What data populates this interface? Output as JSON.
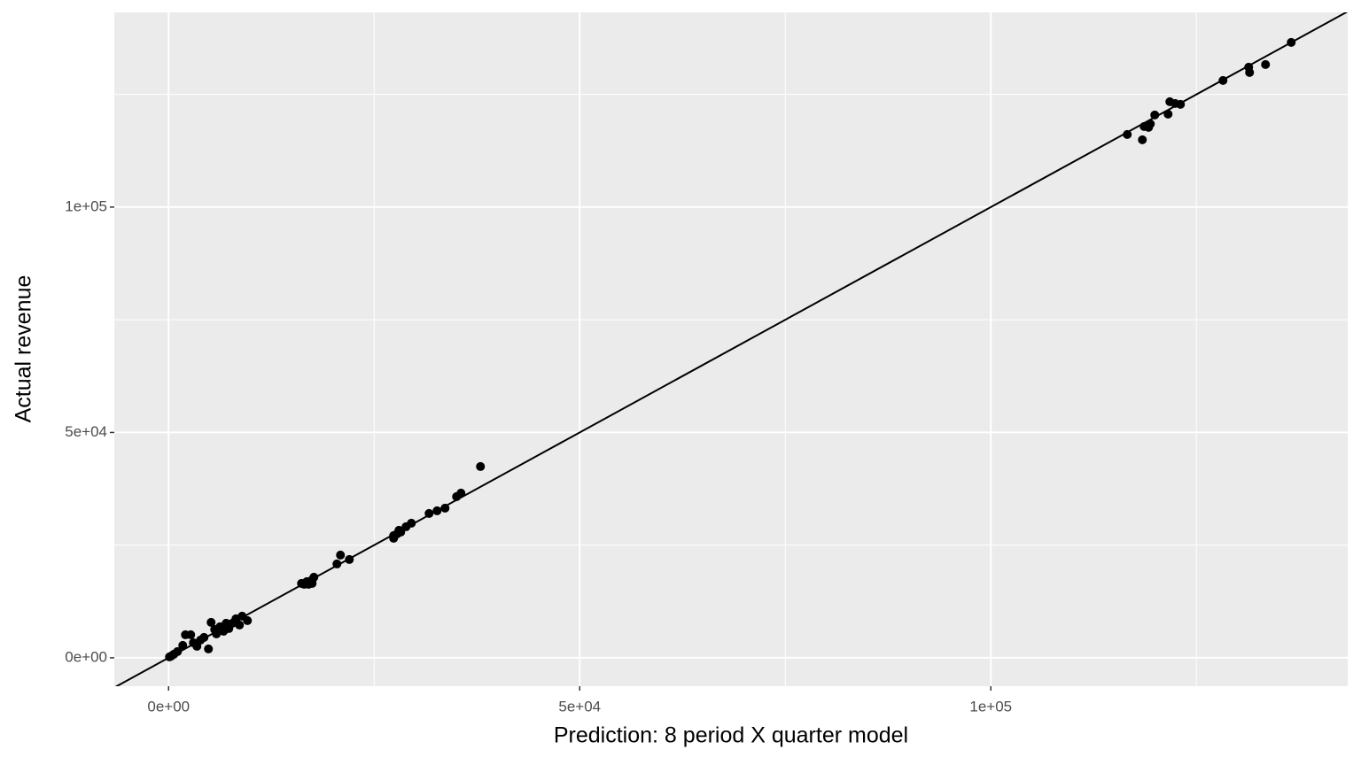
{
  "chart_data": {
    "type": "scatter",
    "x_label": "Prediction: 8 period X quarter model",
    "y_label": "Actual revenue",
    "color": "#000000",
    "panel_color": "#ebebeb",
    "grid": true,
    "xlim": [
      -6600,
      143400
    ],
    "ylim": [
      -6300,
      143200
    ],
    "xticks": [
      {
        "value": 0,
        "label": "0e+00"
      },
      {
        "value": 50000,
        "label": "5e+04"
      },
      {
        "value": 100000,
        "label": "1e+05"
      }
    ],
    "yticks": [
      {
        "value": 0,
        "label": "0e+00"
      },
      {
        "value": 50000,
        "label": "5e+04"
      },
      {
        "value": 100000,
        "label": "1e+05"
      }
    ],
    "minor_xticks": [
      25000,
      75000,
      125000
    ],
    "minor_yticks": [
      25000,
      75000,
      125000
    ],
    "abline": {
      "intercept": 0,
      "slope": 1
    },
    "x": [
      116595,
      118427,
      118642,
      119181,
      119397,
      119935,
      121767,
      122414,
      121552,
      123060,
      128233,
      131358,
      131466,
      133405,
      136530,
      37931,
      35560,
      35022,
      33621,
      32651,
      31681,
      29526,
      28879,
      28233,
      27802,
      27371,
      27371,
      28017,
      21983,
      20905,
      20474,
      17457,
      17457,
      17026,
      17672,
      16164,
      16810,
      16487,
      9591,
      8944,
      8190,
      7759,
      8621,
      7004,
      6250,
      5603,
      5172,
      5819,
      4849,
      4310,
      3879,
      3017,
      2694,
      2047,
      1724,
      1078,
      647,
      323,
      108,
      6681,
      7328,
      3448
    ],
    "y": [
      116110,
      114931,
      117878,
      117682,
      118468,
      120432,
      123379,
      122986,
      120629,
      122790,
      128094,
      131041,
      129862,
      131631,
      136542,
      42436,
      36542,
      35756,
      33202,
      32613,
      32024,
      29862,
      29077,
      27898,
      27505,
      27112,
      26523,
      28291,
      21807,
      22790,
      20825,
      17289,
      16503,
      16306,
      17878,
      16503,
      16896,
      16306,
      8251,
      9234,
      8644,
      7662,
      7269,
      7662,
      6876,
      6287,
      7859,
      5305,
      1965,
      4519,
      3929,
      3340,
      5108,
      5108,
      2750,
      1375,
      786,
      393,
      196,
      5894,
      6483,
      2554
    ]
  }
}
